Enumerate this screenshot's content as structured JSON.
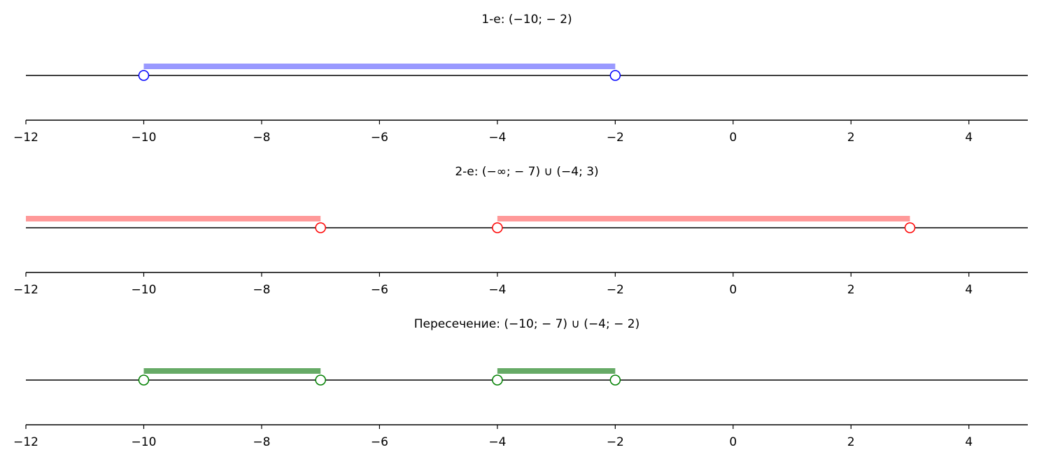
{
  "chart_data": [
    {
      "type": "number-line",
      "title": "1-е: (−10; − 2)",
      "xlim": [
        -12,
        5
      ],
      "xticks": [
        -12,
        -10,
        -8,
        -6,
        -4,
        -2,
        0,
        2,
        4
      ],
      "tick_labels": [
        "−12",
        "−10",
        "−8",
        "−6",
        "−4",
        "−2",
        "0",
        "2",
        "4"
      ],
      "color": "#0000ff",
      "band_color": "#9999ff",
      "intervals": [
        {
          "from": -10,
          "to": -2,
          "left_open": true,
          "right_open": true
        }
      ]
    },
    {
      "type": "number-line",
      "title": "2-е: (−∞; − 7) ∪ (−4; 3)",
      "xlim": [
        -12,
        5
      ],
      "xticks": [
        -12,
        -10,
        -8,
        -6,
        -4,
        -2,
        0,
        2,
        4
      ],
      "tick_labels": [
        "−12",
        "−10",
        "−8",
        "−6",
        "−4",
        "−2",
        "0",
        "2",
        "4"
      ],
      "color": "#ff0000",
      "band_color": "#ff9999",
      "intervals": [
        {
          "from": null,
          "to": -7,
          "left_open": true,
          "right_open": true
        },
        {
          "from": -4,
          "to": 3,
          "left_open": true,
          "right_open": true
        }
      ]
    },
    {
      "type": "number-line",
      "title": "Пересечение: (−10; − 7) ∪ (−4; − 2)",
      "xlim": [
        -12,
        5
      ],
      "xticks": [
        -12,
        -10,
        -8,
        -6,
        -4,
        -2,
        0,
        2,
        4
      ],
      "tick_labels": [
        "−12",
        "−10",
        "−8",
        "−6",
        "−4",
        "−2",
        "0",
        "2",
        "4"
      ],
      "color": "#008000",
      "band_color": "#66aa66",
      "intervals": [
        {
          "from": -10,
          "to": -7,
          "left_open": true,
          "right_open": true
        },
        {
          "from": -4,
          "to": -2,
          "left_open": true,
          "right_open": true
        }
      ]
    }
  ]
}
